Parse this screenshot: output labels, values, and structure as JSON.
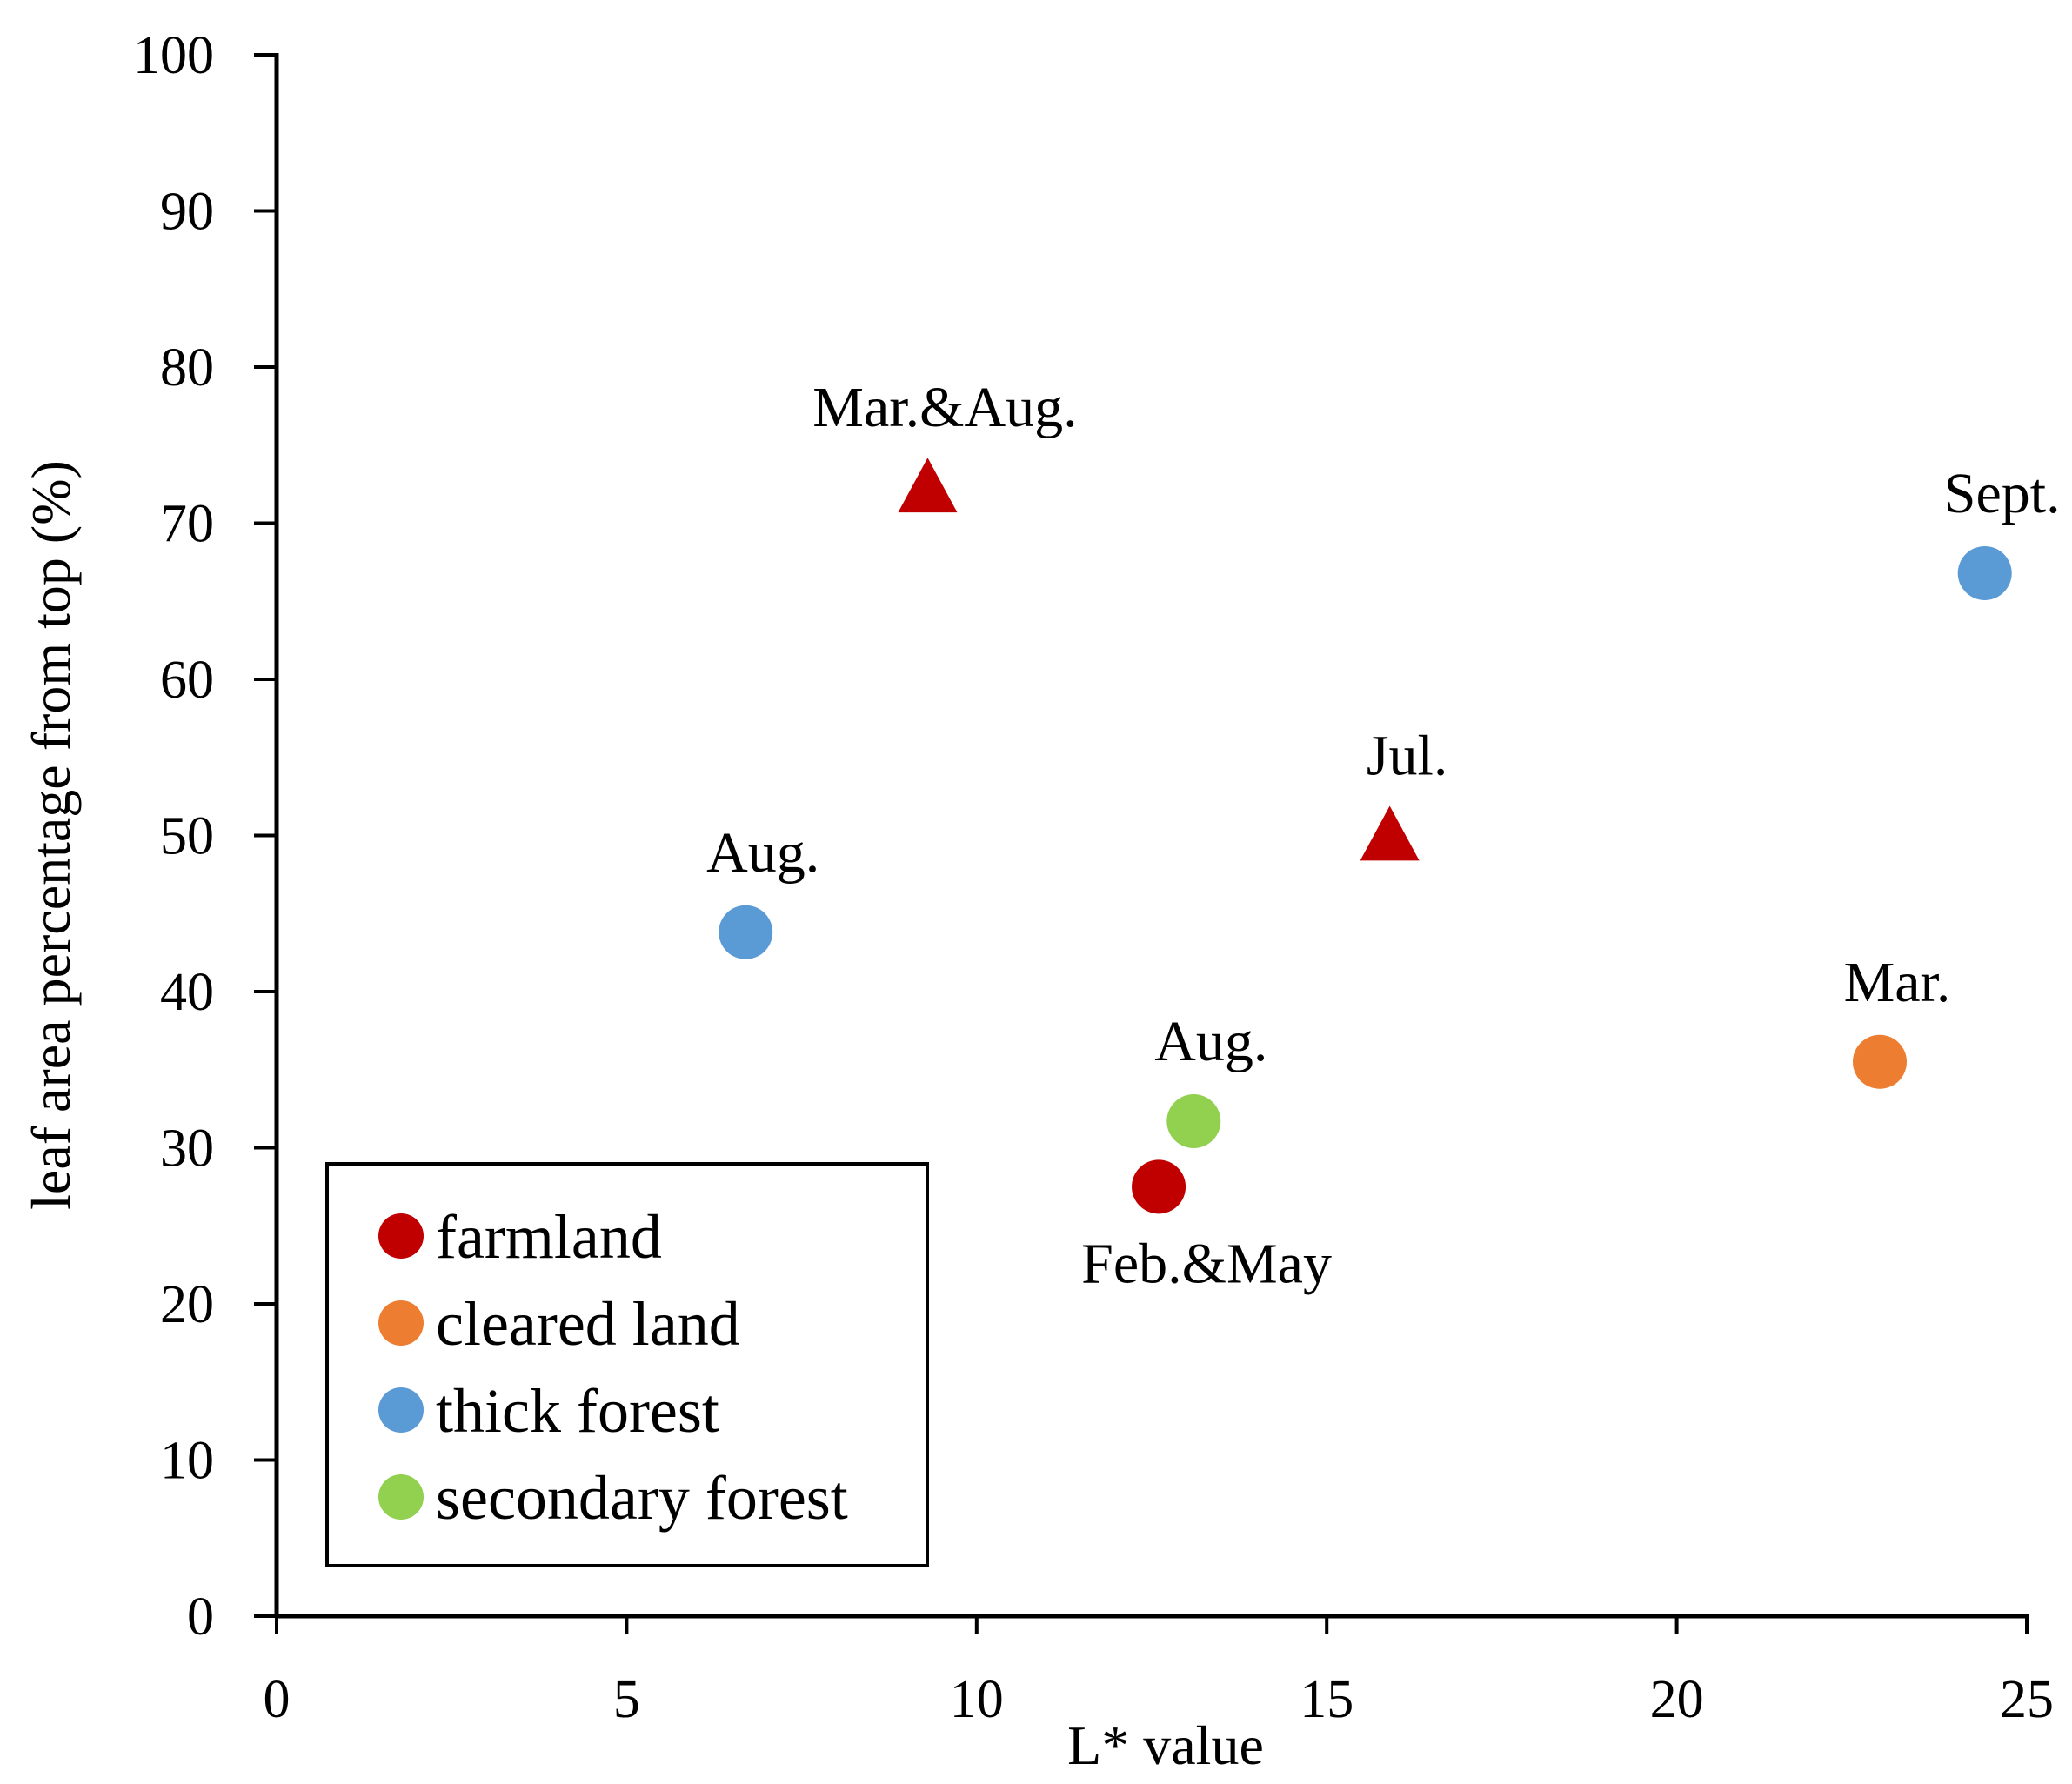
{
  "chart_data": {
    "type": "scatter",
    "title": "",
    "xlabel": "L* value",
    "ylabel": "leaf area percentage from top (%)",
    "xlim": [
      0,
      25
    ],
    "ylim": [
      0,
      100
    ],
    "x_ticks": [
      0,
      5,
      10,
      15,
      20,
      25
    ],
    "y_ticks": [
      0,
      10,
      20,
      30,
      40,
      50,
      60,
      70,
      80,
      90,
      100
    ],
    "grid": false,
    "legend_position": "bottom-left",
    "colors": {
      "farmland": "#c00000",
      "cleared land": "#ed7d31",
      "thick forest": "#5b9bd5",
      "secondary forest": "#92d050"
    },
    "legend": [
      {
        "name": "farmland",
        "color": "#c00000"
      },
      {
        "name": "cleared land",
        "color": "#ed7d31"
      },
      {
        "name": "thick forest",
        "color": "#5b9bd5"
      },
      {
        "name": "secondary forest",
        "color": "#92d050"
      }
    ],
    "points": [
      {
        "series": "farmland",
        "marker": "triangle",
        "x": 9.3,
        "y": 72.3,
        "label": "Mar.&Aug.",
        "label_pos": "above"
      },
      {
        "series": "farmland",
        "marker": "triangle",
        "x": 15.9,
        "y": 50.0,
        "label": "Jul.",
        "label_pos": "above"
      },
      {
        "series": "farmland",
        "marker": "circle",
        "x": 12.6,
        "y": 27.5,
        "label": "Feb.&May",
        "label_pos": "below"
      },
      {
        "series": "cleared land",
        "marker": "circle",
        "x": 22.9,
        "y": 35.5,
        "label": "Mar.",
        "label_pos": "above"
      },
      {
        "series": "thick forest",
        "marker": "circle",
        "x": 6.7,
        "y": 43.8,
        "label": "Aug.",
        "label_pos": "above"
      },
      {
        "series": "thick forest",
        "marker": "circle",
        "x": 24.4,
        "y": 66.8,
        "label": "Sept.",
        "label_pos": "above"
      },
      {
        "series": "secondary forest",
        "marker": "circle",
        "x": 13.1,
        "y": 31.7,
        "label": "Aug.",
        "label_pos": "above"
      }
    ]
  }
}
